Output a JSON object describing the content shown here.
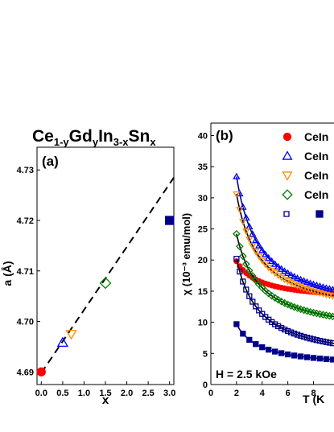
{
  "figure": {
    "title_parts": [
      {
        "t": "Ce",
        "sub": false
      },
      {
        "t": "1-y",
        "sub": true
      },
      {
        "t": "Gd",
        "sub": false
      },
      {
        "t": "y",
        "sub": true
      },
      {
        "t": "In",
        "sub": false
      },
      {
        "t": "3-x",
        "sub": true
      },
      {
        "t": "Sn",
        "sub": false
      },
      {
        "t": "x",
        "sub": true
      }
    ]
  },
  "chart_data": [
    {
      "type": "scatter",
      "panel_label": "(a)",
      "xlabel": "x",
      "ylabel": "a (Å)",
      "xlim": [
        -0.1,
        3.1
      ],
      "ylim": [
        4.6875,
        4.7345
      ],
      "x_ticks": [
        "0.0",
        "0.5",
        "1.0",
        "1.5",
        "2.0",
        "2.5",
        "3.0"
      ],
      "y_ticks": [
        "4.69",
        "4.70",
        "4.71",
        "4.72",
        "4.73"
      ],
      "points": [
        {
          "x": 0.0,
          "y": 4.69,
          "marker": "circle",
          "filled": true,
          "color": "#ff0000"
        },
        {
          "x": 0.5,
          "y": 4.6958,
          "marker": "triangle-up",
          "filled": false,
          "color": "#0000ff"
        },
        {
          "x": 0.7,
          "y": 4.6975,
          "marker": "triangle-down",
          "filled": false,
          "color": "#ff8c00"
        },
        {
          "x": 1.5,
          "y": 4.7076,
          "marker": "diamond",
          "filled": false,
          "color": "#008000"
        },
        {
          "x": 3.0,
          "y": 4.72,
          "marker": "square",
          "filled": true,
          "color": "#00008b"
        }
      ],
      "fit_line": {
        "x": [
          0.0,
          3.1
        ],
        "y": [
          4.6898,
          4.7285
        ],
        "style": "dashed",
        "color": "#000000"
      },
      "grid": false
    },
    {
      "type": "scatter",
      "panel_label": "(b)",
      "xlabel": "T (K",
      "ylabel": "χ (10⁻³ emu/mol)",
      "xlim": [
        0,
        9.6
      ],
      "ylim": [
        0,
        42
      ],
      "x_ticks": [
        "0",
        "2",
        "4",
        "6",
        "8"
      ],
      "y_ticks": [
        "0",
        "5",
        "10",
        "15",
        "20",
        "25",
        "30",
        "35",
        "40"
      ],
      "annotation": "H = 2.5 kOe",
      "legend_placement": "top-right",
      "legend": [
        {
          "label": "CeIn",
          "marker": "circle",
          "filled": true,
          "color": "#ff0000"
        },
        {
          "label": "CeIn",
          "marker": "triangle-up",
          "filled": false,
          "color": "#0000ff"
        },
        {
          "label": "CeIn",
          "marker": "triangle-down",
          "filled": false,
          "color": "#ff8c00"
        },
        {
          "label": "CeIn",
          "marker": "diamond",
          "filled": false,
          "color": "#008000"
        },
        {
          "label": "",
          "marker": "square-pair",
          "filled": false,
          "color": "#00008b"
        }
      ],
      "series": [
        {
          "marker": "circle",
          "filled": true,
          "color": "#ff0000",
          "fit_color": "#000000",
          "x": [
            2.0,
            9.6
          ],
          "y": [
            19.8,
            14.6
          ]
        },
        {
          "marker": "triangle-up",
          "filled": false,
          "color": "#0000ff",
          "fit_color": "#00008b",
          "x": [
            2.0,
            9.6
          ],
          "y": [
            33.4,
            15.2
          ]
        },
        {
          "marker": "triangle-down",
          "filled": false,
          "color": "#ff8c00",
          "fit_color": "#000000",
          "x": [
            2.0,
            9.6
          ],
          "y": [
            30.6,
            14.2
          ]
        },
        {
          "marker": "diamond",
          "filled": false,
          "color": "#008000",
          "fit_color": "#000000",
          "x": [
            2.0,
            9.6
          ],
          "y": [
            24.2,
            10.9
          ]
        },
        {
          "marker": "square",
          "filled": false,
          "color": "#00008b",
          "fit_color": "#000000",
          "x": [
            2.0,
            9.6
          ],
          "y": [
            20.2,
            6.6
          ]
        },
        {
          "marker": "square",
          "filled": true,
          "color": "#00008b",
          "fit_color": "#00008b",
          "x": [
            2.0,
            9.6
          ],
          "y": [
            9.7,
            4.0
          ]
        }
      ],
      "grid": false
    }
  ]
}
